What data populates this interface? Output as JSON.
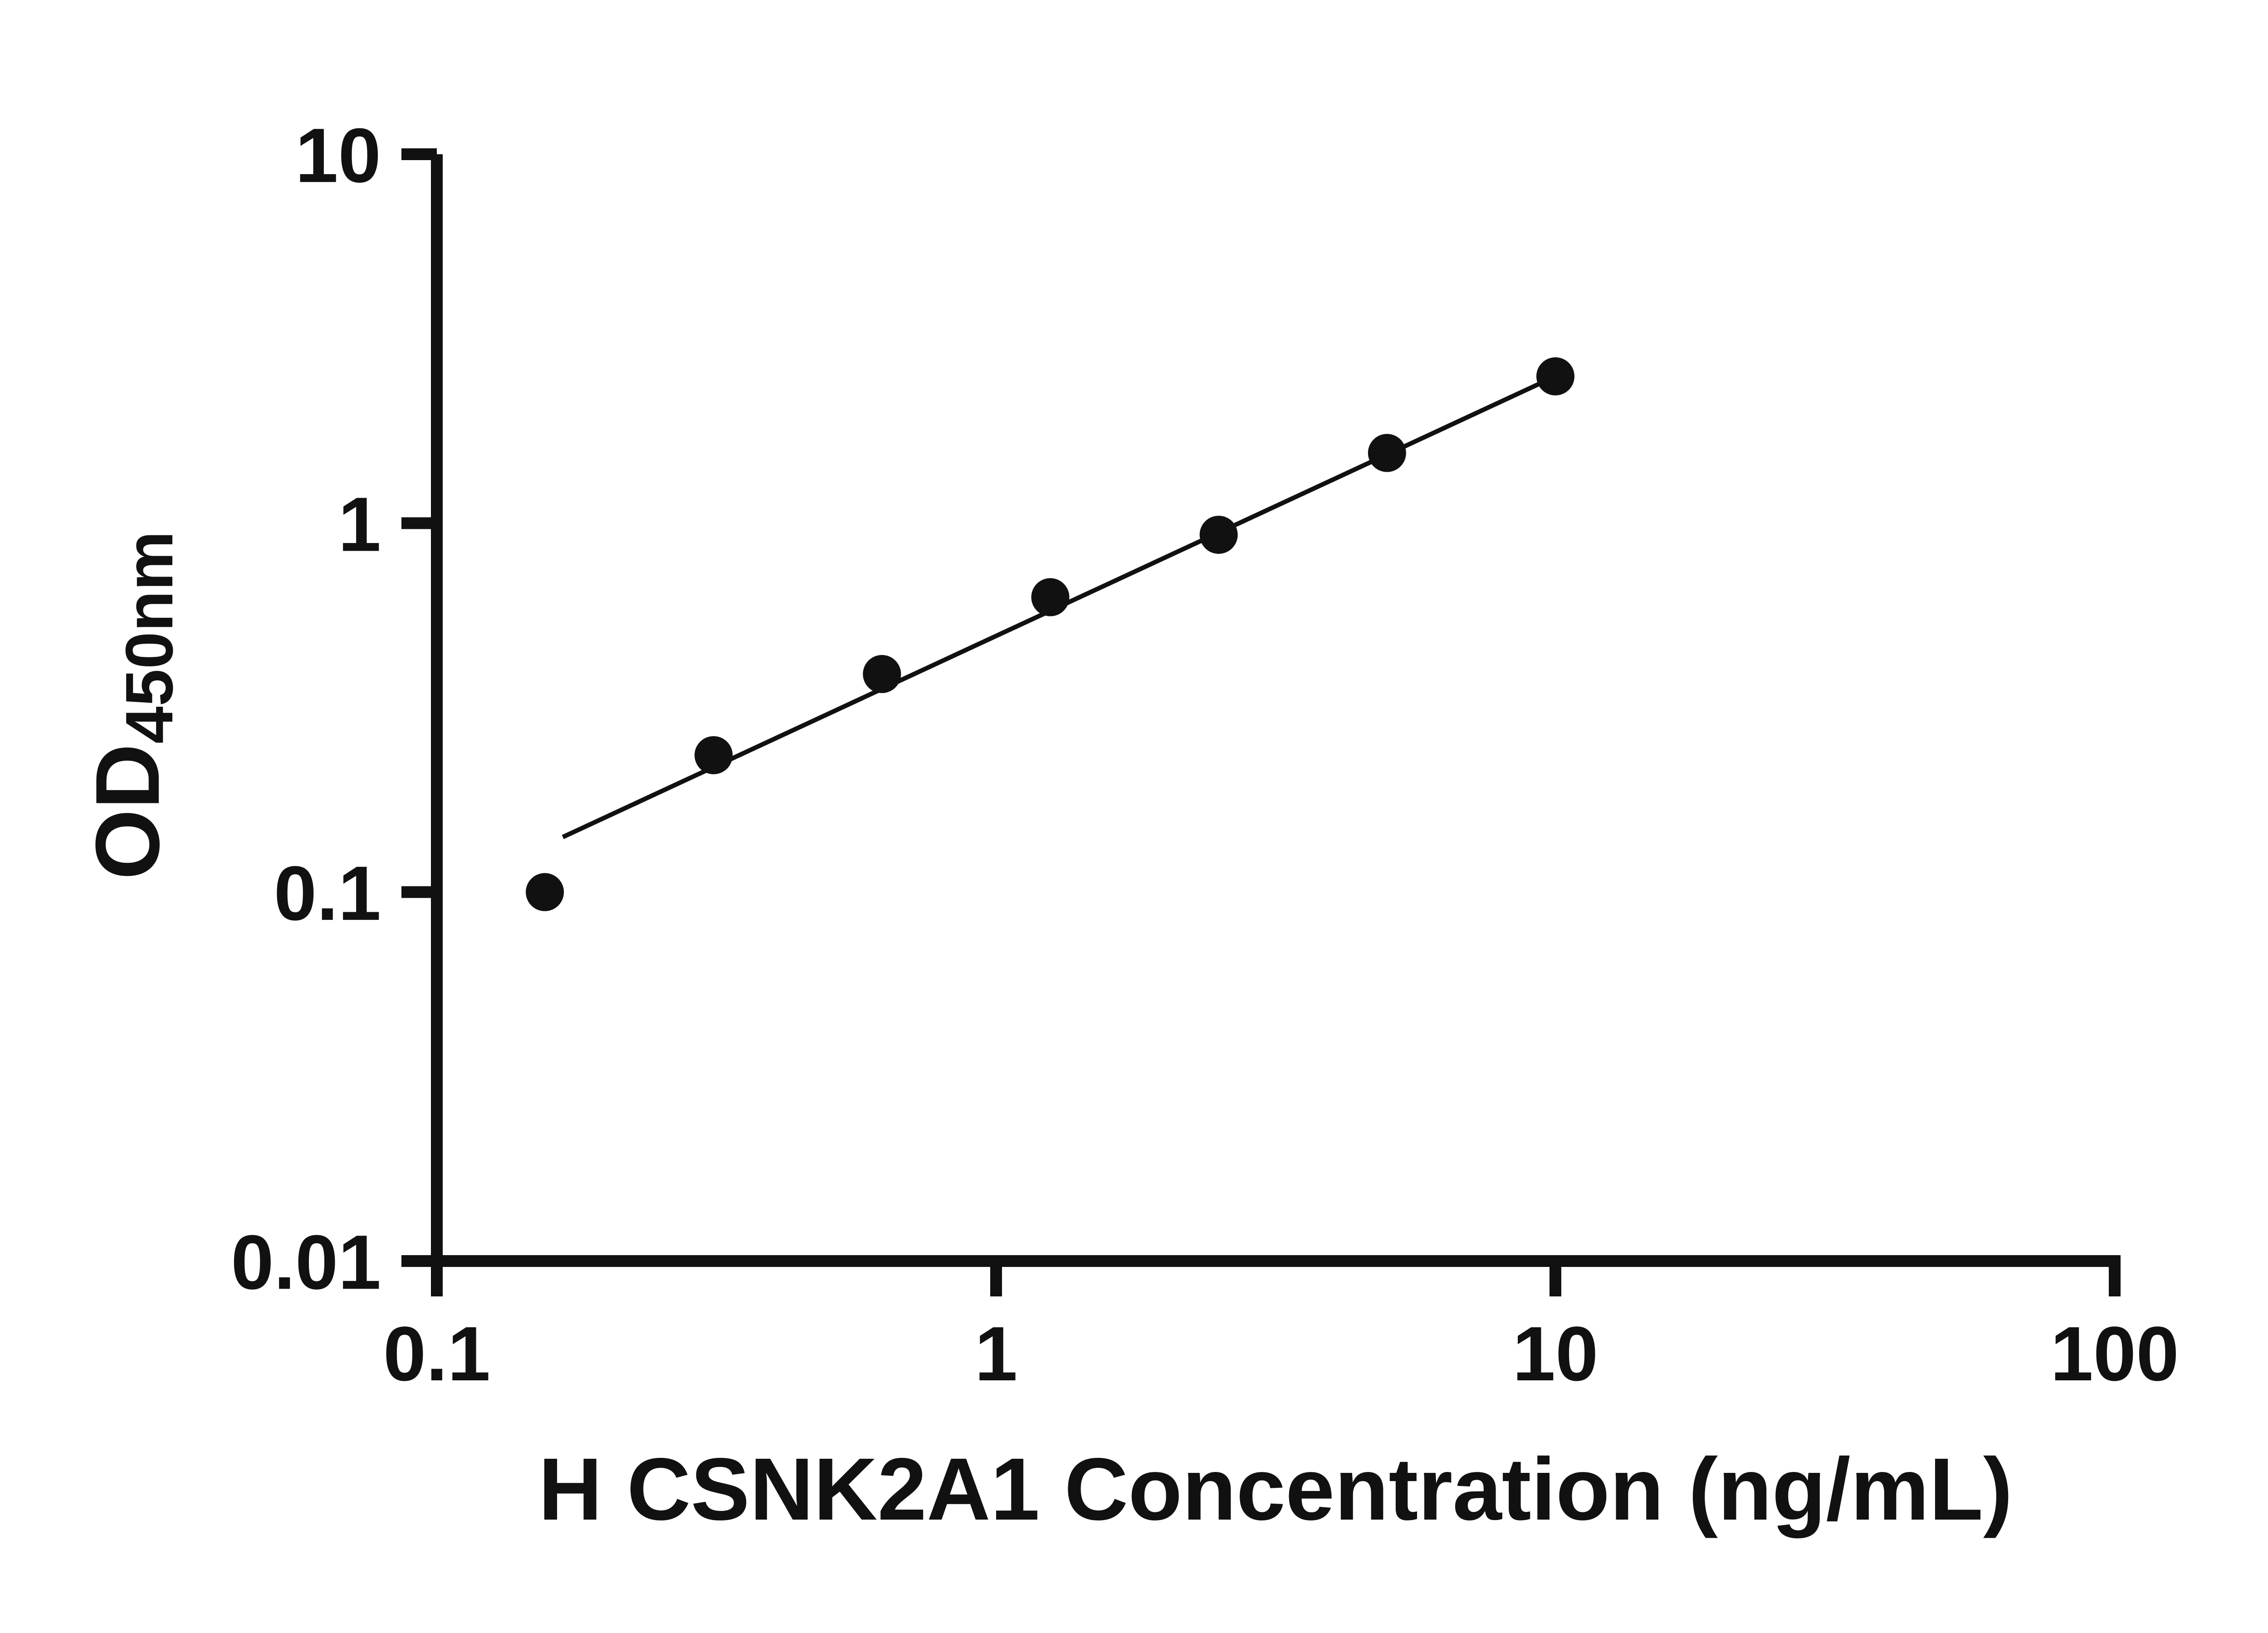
{
  "chart_data": {
    "type": "scatter",
    "title": "",
    "xlabel": "H CSNK2A1 Concentration (ng/mL)",
    "ylabel_main": "OD",
    "ylabel_sub": "450nm",
    "x_scale": "log",
    "y_scale": "log",
    "xlim": [
      0.1,
      100
    ],
    "ylim": [
      0.01,
      10
    ],
    "grid": false,
    "legend": "none",
    "x_ticks": [
      {
        "value": 0.1,
        "label": "0.1"
      },
      {
        "value": 1,
        "label": "1"
      },
      {
        "value": 10,
        "label": "10"
      },
      {
        "value": 100,
        "label": "100"
      }
    ],
    "y_ticks": [
      {
        "value": 0.01,
        "label": "0.01"
      },
      {
        "value": 0.1,
        "label": "0.1"
      },
      {
        "value": 1,
        "label": "1"
      },
      {
        "value": 10,
        "label": "10"
      }
    ],
    "points": [
      {
        "x": 0.156,
        "y": 0.1
      },
      {
        "x": 0.3125,
        "y": 0.235
      },
      {
        "x": 0.625,
        "y": 0.39
      },
      {
        "x": 1.25,
        "y": 0.63
      },
      {
        "x": 2.5,
        "y": 0.93
      },
      {
        "x": 5,
        "y": 1.55
      },
      {
        "x": 10,
        "y": 2.5
      }
    ],
    "trend_line": {
      "x1": 0.168,
      "y1": 0.141,
      "x2": 10.0,
      "y2": 2.5
    },
    "colors": {
      "points": "#111111",
      "line": "#111111",
      "axis": "#111111",
      "background": "#ffffff"
    }
  }
}
